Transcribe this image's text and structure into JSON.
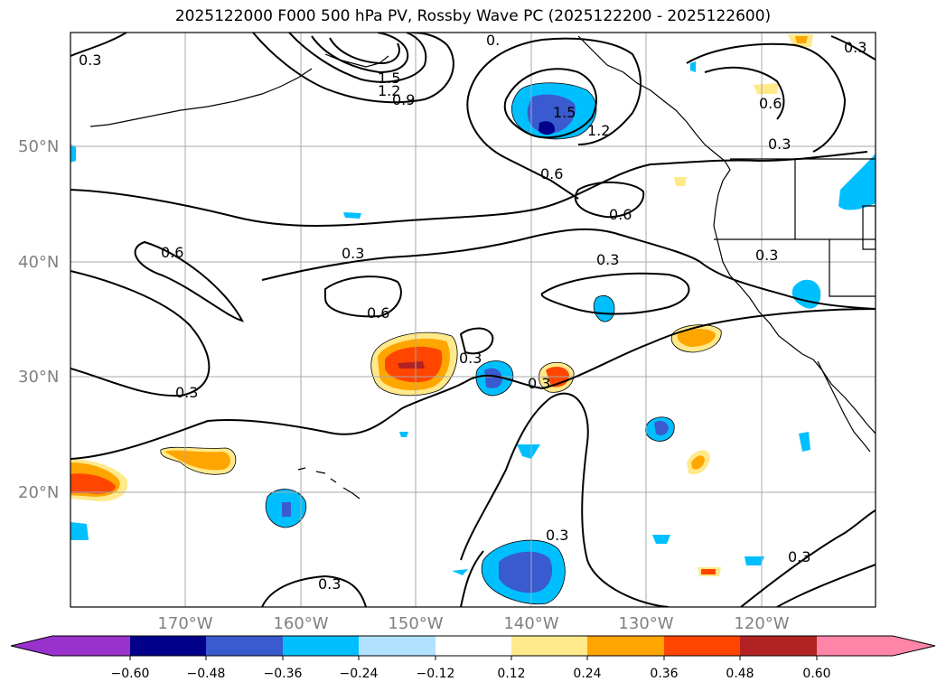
{
  "title": "2025122000 F000 500 hPa PV, Rossby Wave PC (2025122200 - 2025122600)",
  "lat_labels": [
    "50°N",
    "40°N",
    "30°N",
    "20°N"
  ],
  "lon_labels": [
    "170°W",
    "160°W",
    "150°W",
    "140°W",
    "130°W",
    "120°W"
  ],
  "contour_labels": [
    "0.3",
    "1.5",
    "1.2",
    "0.9",
    "0.",
    "1.5",
    "1.2",
    "0.6",
    "0.3",
    "0.6",
    "0.6",
    "0.3",
    "0.6",
    "0.3",
    "0.3",
    "0.3",
    "0.6",
    "0.3",
    "0.3",
    "0.3",
    "0.3",
    "0.3",
    "0.3"
  ],
  "colorbar": {
    "ticks": [
      "−0.60",
      "−0.48",
      "−0.36",
      "−0.24",
      "−0.12",
      "0.12",
      "0.24",
      "0.36",
      "0.48",
      "0.60"
    ],
    "colors": [
      "#9932cc",
      "#00008b",
      "#3a5bd0",
      "#00bfff",
      "#b0e2ff",
      "#ffffff",
      "#ffe98a",
      "#ffa500",
      "#ff4500",
      "#b22222",
      "#ff85a8"
    ]
  }
}
